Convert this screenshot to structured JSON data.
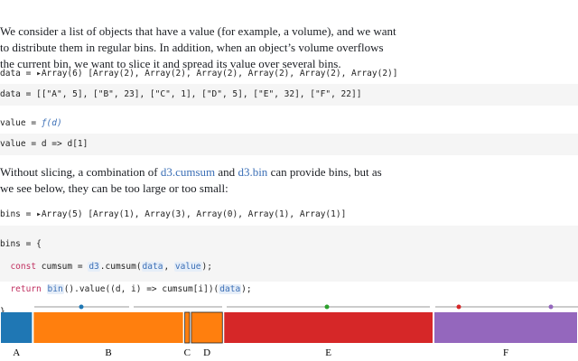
{
  "intro": [
    "We consider a list of objects that have a value (for example, a volume), and we want",
    "to distribute them in regular bins. In addition, when an object’s volume overflows",
    "the current bin, we want to slice it and spread its value over several bins."
  ],
  "data_output": [
    "data",
    "=",
    "▸",
    "Array(6)",
    "[Array(2), Array(2), Array(2), Array(2), Array(2), Array(2)]"
  ],
  "data_code": [
    "data",
    "=",
    "[[\"A\", 5], [\"B\", 23], [\"C\", 1], [\"D\", 5], [\"E\", 32], [\"F\", 22]]"
  ],
  "value_output": [
    "value",
    "=",
    "ƒ(d)"
  ],
  "value_code": [
    "value",
    "=",
    "d",
    "=>",
    "d[1]"
  ],
  "paragraph": [
    "Without slicing, a combination of ",
    "d3.cumsum",
    " and ",
    "d3.bin",
    " can provide bins, but as",
    "we see below, they can be too large or too small:"
  ],
  "bins_output": [
    "bins",
    "=",
    "▸",
    "Array(5)",
    "[Array(1), Array(3), Array(0), Array(1), Array(1)]"
  ],
  "bins_code": [
    [
      "bins",
      "=",
      "{"
    ],
    [
      "const",
      "cumsum",
      "=",
      "d3",
      ".cumsum(",
      "data",
      ",",
      "value",
      ");"
    ],
    [
      "return",
      "bin",
      "().value((d, i) => cumsum[i])(",
      "data",
      ");"
    ],
    [
      "}"
    ]
  ],
  "figure": {
    "type": "bar",
    "categories": [
      "A",
      "B",
      "C",
      "D",
      "E",
      "F"
    ],
    "values": [
      5,
      23,
      1,
      5,
      32,
      22
    ],
    "colors": [
      "#1f77b4",
      "#ff7f0e",
      "#ff7f0e",
      "#ff7f0e",
      "#d62728",
      "#9467bd"
    ]
  }
}
